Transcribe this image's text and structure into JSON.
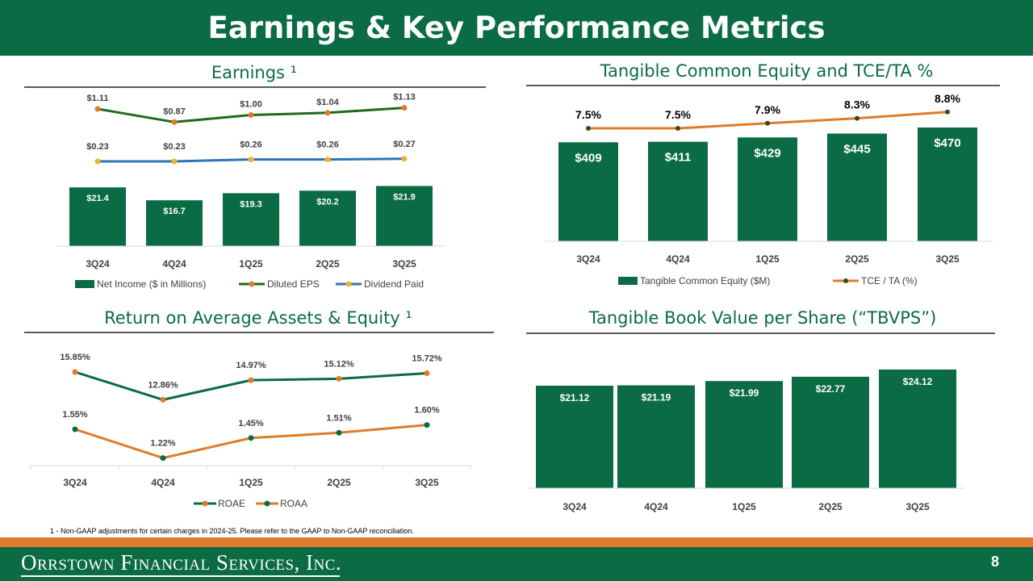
{
  "page": {
    "title": "Earnings & Key Performance Metrics",
    "footnote": "1 - Non-GAAP adjustments for certain charges in 2024-25. Please refer to the GAAP to Non-GAAP reconciliation.",
    "company": "Orrstown Financial Services, Inc.",
    "page_number": "8"
  },
  "colors": {
    "green": "#0b6b45",
    "orange": "#e07b2a",
    "blue": "#2e75b6",
    "gold": "#f2b134",
    "dark_green_line": "#1e6b1e"
  },
  "chart_data": [
    {
      "id": "earnings",
      "type": "bar",
      "title": "Earnings ¹",
      "categories": [
        "3Q24",
        "4Q24",
        "1Q25",
        "2Q25",
        "3Q25"
      ],
      "series": [
        {
          "name": "Net Income ($ in Millions)",
          "type": "bar",
          "values": [
            21.4,
            16.7,
            19.3,
            20.2,
            21.9
          ],
          "labels": [
            "$21.4",
            "$16.7",
            "$19.3",
            "$20.2",
            "$21.9"
          ]
        },
        {
          "name": "Diluted EPS",
          "type": "line",
          "values": [
            1.11,
            0.87,
            1.0,
            1.04,
            1.13
          ],
          "labels": [
            "$1.11",
            "$0.87",
            "$1.00",
            "$1.04",
            "$1.13"
          ]
        },
        {
          "name": "Dividend Paid",
          "type": "line",
          "values": [
            0.23,
            0.23,
            0.26,
            0.26,
            0.27
          ],
          "labels": [
            "$0.23",
            "$0.23",
            "$0.26",
            "$0.26",
            "$0.27"
          ]
        }
      ],
      "legend": [
        "Net Income ($ in Millions)",
        "Diluted EPS",
        "Dividend Paid"
      ]
    },
    {
      "id": "tce",
      "type": "bar",
      "title": "Tangible Common Equity and TCE/TA %",
      "categories": [
        "3Q24",
        "4Q24",
        "1Q25",
        "2Q25",
        "3Q25"
      ],
      "series": [
        {
          "name": "Tangible Common Equity ($M)",
          "type": "bar",
          "values": [
            409,
            411,
            429,
            445,
            470
          ],
          "labels": [
            "$409",
            "$411",
            "$429",
            "$445",
            "$470"
          ]
        },
        {
          "name": "TCE / TA (%)",
          "type": "line",
          "values": [
            7.5,
            7.5,
            7.9,
            8.3,
            8.8
          ],
          "labels": [
            "7.5%",
            "7.5%",
            "7.9%",
            "8.3%",
            "8.8%"
          ]
        }
      ],
      "legend": [
        "Tangible Common Equity ($M)",
        "TCE / TA (%)"
      ]
    },
    {
      "id": "returns",
      "type": "line",
      "title": "Return on Average Assets & Equity ¹",
      "categories": [
        "3Q24",
        "4Q24",
        "1Q25",
        "2Q25",
        "3Q25"
      ],
      "series": [
        {
          "name": "ROAE",
          "type": "line",
          "values": [
            15.85,
            12.86,
            14.97,
            15.12,
            15.72
          ],
          "labels": [
            "15.85%",
            "12.86%",
            "14.97%",
            "15.12%",
            "15.72%"
          ]
        },
        {
          "name": "ROAA",
          "type": "line",
          "values": [
            1.55,
            1.22,
            1.45,
            1.51,
            1.6
          ],
          "labels": [
            "1.55%",
            "1.22%",
            "1.45%",
            "1.51%",
            "1.60%"
          ]
        }
      ],
      "legend": [
        "ROAE",
        "ROAA"
      ]
    },
    {
      "id": "tbvps",
      "type": "bar",
      "title": "Tangible Book Value per Share (“TBVPS”)",
      "categories": [
        "3Q24",
        "4Q24",
        "1Q25",
        "2Q25",
        "3Q25"
      ],
      "series": [
        {
          "name": "TBVPS",
          "type": "bar",
          "values": [
            21.12,
            21.19,
            21.99,
            22.77,
            24.12
          ],
          "labels": [
            "$21.12",
            "$21.19",
            "$21.99",
            "$22.77",
            "$24.12"
          ]
        }
      ]
    }
  ]
}
